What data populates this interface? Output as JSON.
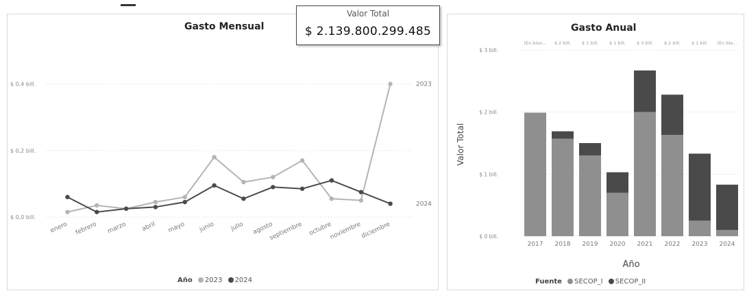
{
  "kpi": {
    "label": "Valor Total",
    "value": "$ 2.139.800.299.485"
  },
  "colors": {
    "series_2023": "#b4b4b4",
    "series_2024": "#4a4a4a",
    "secop1": "#8f8f8f",
    "secop2": "#4a4a4a",
    "grid": "#d0d0d0"
  },
  "chart_data": [
    {
      "type": "line",
      "title": "Gasto Mensual",
      "categories": [
        "enero",
        "febrero",
        "marzo",
        "abril",
        "mayo",
        "junio",
        "julio",
        "agosto",
        "septiembre",
        "octubre",
        "noviembre",
        "diciembre"
      ],
      "series": [
        {
          "name": "2023",
          "values": [
            0.015,
            0.035,
            0.025,
            0.045,
            0.06,
            0.18,
            0.105,
            0.12,
            0.17,
            0.055,
            0.05,
            0.4
          ]
        },
        {
          "name": "2024",
          "values": [
            0.06,
            0.015,
            0.025,
            0.03,
            0.045,
            0.095,
            0.055,
            0.09,
            0.085,
            0.11,
            0.075,
            0.04
          ]
        }
      ],
      "y_ticks": [
        {
          "value": 0.0,
          "label": "$ 0,0 bill."
        },
        {
          "value": 0.2,
          "label": "$ 0,2 bill."
        },
        {
          "value": 0.4,
          "label": "$ 0,4 bill."
        }
      ],
      "ylim": [
        0,
        0.42
      ],
      "end_labels": [
        "2023",
        "2024"
      ],
      "legend": {
        "title": "Año",
        "items": [
          "2023",
          "2024"
        ],
        "position": "bottom"
      },
      "grid": true
    },
    {
      "type": "bar",
      "stacked": true,
      "title": "Gasto Anual",
      "xlabel": "Año",
      "ylabel": "Valor Total",
      "categories": [
        "2017",
        "2018",
        "2019",
        "2020",
        "2021",
        "2022",
        "2023",
        "2024"
      ],
      "series": [
        {
          "name": "SECOP_I",
          "values": [
            1.99,
            1.57,
            1.3,
            0.7,
            2.0,
            1.63,
            0.25,
            0.1
          ]
        },
        {
          "name": "SECOP_II",
          "values": [
            0.0,
            0.12,
            0.2,
            0.33,
            0.67,
            0.65,
            1.08,
            0.73
          ]
        }
      ],
      "totals_labels": [
        "(En blan...",
        "$ 2 bill.",
        "$ 1 bill.",
        "$ 1 bill.",
        "$ 3 bill.",
        "$ 2 bill.",
        "$ 1 bill.",
        "(En bla..."
      ],
      "y_ticks": [
        {
          "value": 0,
          "label": "$ 0 bill."
        },
        {
          "value": 1,
          "label": "$ 1 bill."
        },
        {
          "value": 2,
          "label": "$ 2 bill."
        },
        {
          "value": 3,
          "label": "$ 3 bill."
        }
      ],
      "ylim": [
        0,
        3
      ],
      "legend": {
        "title": "Fuente",
        "items": [
          "SECOP_I",
          "SECOP_II"
        ],
        "position": "bottom"
      },
      "grid": true
    }
  ]
}
